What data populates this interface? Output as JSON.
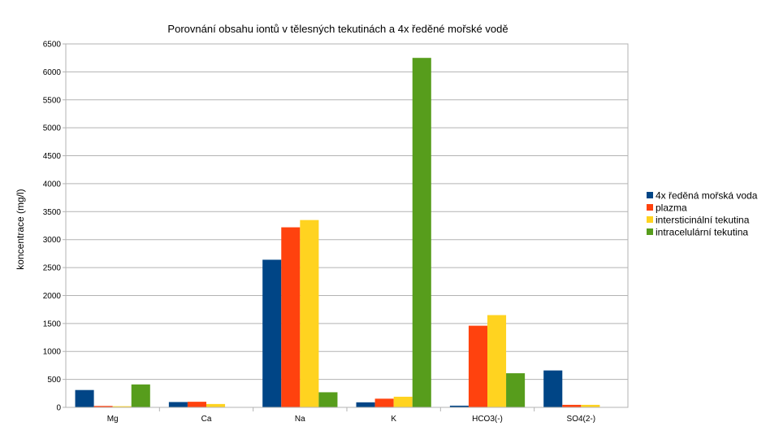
{
  "chart_data": {
    "type": "bar",
    "title": "Porovnání obsahu iontů v tělesných tekutinách a 4x ředěné mořské vodě",
    "xlabel": "",
    "ylabel": "koncentrace (mg/l)",
    "ylim": [
      0,
      6500
    ],
    "ytick_step": 500,
    "grid": true,
    "legend_position": "right",
    "categories": [
      "Mg",
      "Ca",
      "Na",
      "K",
      "HCO3(-)",
      "SO4(2-)"
    ],
    "series": [
      {
        "name": "4x ředěná mořská voda",
        "color": "#004586",
        "values": [
          310,
          95,
          2640,
          90,
          30,
          660
        ]
      },
      {
        "name": "plazma",
        "color": "#ff420e",
        "values": [
          25,
          100,
          3220,
          155,
          1460,
          45
        ]
      },
      {
        "name": "intersticinální tekutina",
        "color": "#ffd320",
        "values": [
          20,
          60,
          3350,
          190,
          1650,
          45
        ]
      },
      {
        "name": "intracelulární tekutina",
        "color": "#579d1c",
        "values": [
          410,
          5,
          270,
          6250,
          610,
          5
        ]
      }
    ]
  }
}
